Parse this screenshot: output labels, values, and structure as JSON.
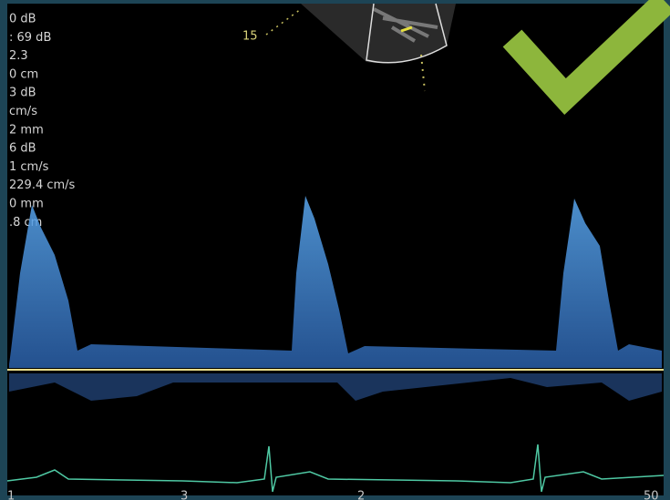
{
  "params": [
    "0 dB",
    ": 69 dB",
    "2.3",
    "0 cm",
    "3 dB",
    "cm/s",
    "2 mm",
    "6 dB",
    "1 cm/s",
    "229.4 cm/s",
    "0 mm",
    ".8 cm"
  ],
  "depth_label": "15",
  "time_labels": [
    "1",
    "3",
    "2",
    "50"
  ]
}
